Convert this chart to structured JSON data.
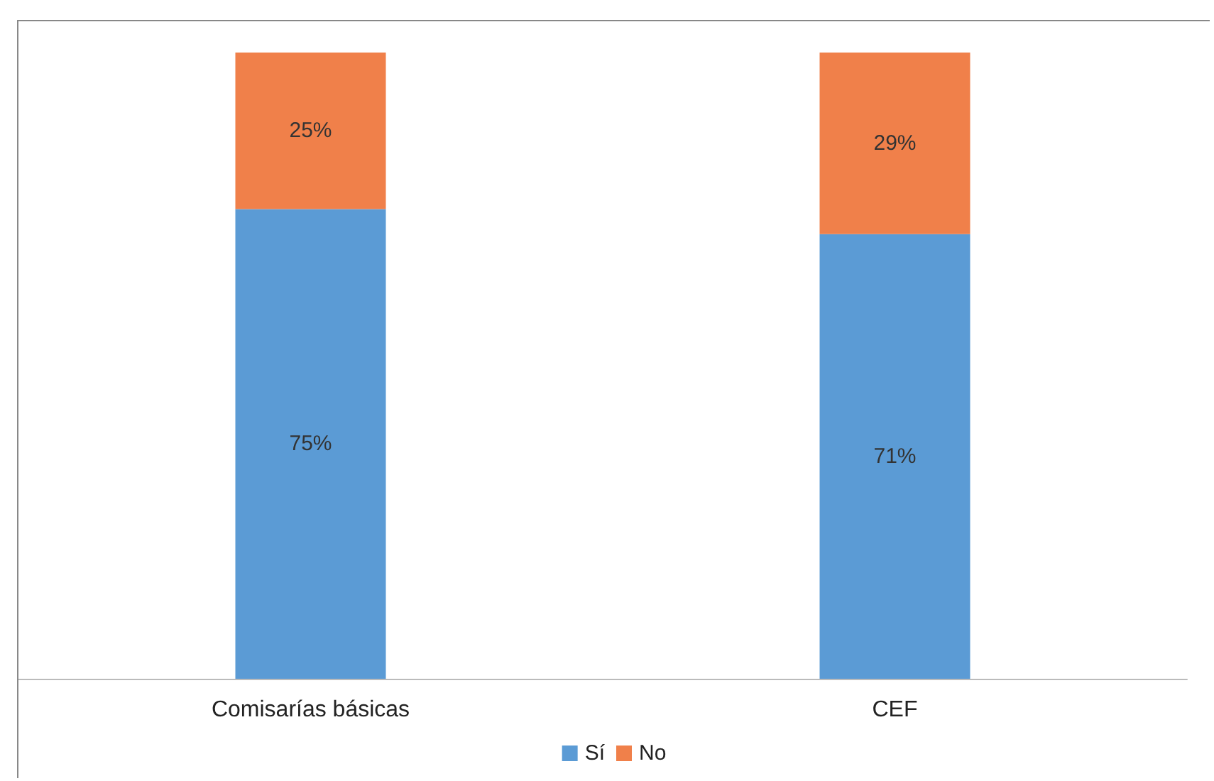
{
  "chart_data": {
    "type": "bar",
    "stacked": true,
    "categories": [
      "Comisarías básicas",
      "CEF"
    ],
    "series": [
      {
        "name": "Sí",
        "color": "#5b9bd5",
        "values": [
          75,
          71
        ],
        "value_labels": [
          "75%",
          "71%"
        ]
      },
      {
        "name": "No",
        "color": "#f0804a",
        "values": [
          25,
          29
        ],
        "value_labels": [
          "25%",
          "29%"
        ]
      }
    ],
    "legend": "bottom"
  }
}
